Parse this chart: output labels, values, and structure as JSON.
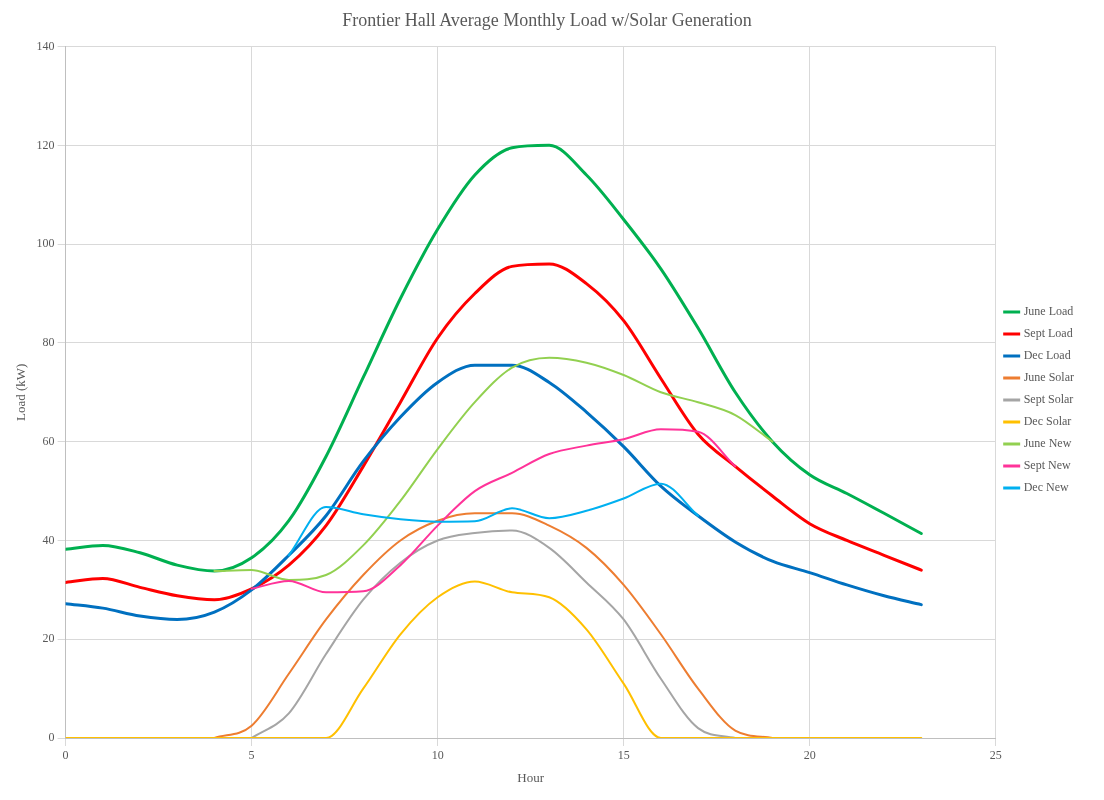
{
  "chart_data": {
    "type": "line",
    "title": "Frontier Hall Average Monthly Load w/Solar Generation",
    "xlabel": "Hour",
    "ylabel": "Load (kW)",
    "x": [
      0,
      1,
      2,
      3,
      4,
      5,
      6,
      7,
      8,
      9,
      10,
      11,
      12,
      13,
      14,
      15,
      16,
      17,
      18,
      19,
      20,
      21,
      22,
      23
    ],
    "xlim": [
      0,
      25
    ],
    "xticks": [
      0,
      5,
      10,
      15,
      20,
      25
    ],
    "ylim": [
      0,
      140
    ],
    "yticks": [
      0,
      20,
      40,
      60,
      80,
      100,
      120,
      140
    ],
    "grid": true,
    "legend": "right",
    "marker": "none",
    "series": [
      {
        "name": "June Load",
        "color": "#00b050",
        "values": [
          38.2,
          39,
          37.5,
          35,
          33.8,
          36.5,
          44,
          57,
          73,
          89,
          103,
          114,
          119.5,
          120,
          114,
          105,
          95,
          83,
          70,
          60,
          53.3,
          49.5,
          45.5,
          41.4
        ]
      },
      {
        "name": "Sept Load",
        "color": "#ff0000",
        "values": [
          31.5,
          32.3,
          30.5,
          28.8,
          28,
          30.2,
          35,
          43,
          55,
          68,
          81,
          90,
          95.5,
          96,
          92,
          84.5,
          72.8,
          61.5,
          55,
          49,
          43.4,
          40,
          37,
          34
        ]
      },
      {
        "name": "Dec Load",
        "color": "#0070c0",
        "values": [
          27.2,
          26.3,
          24.7,
          24,
          25.5,
          30,
          37,
          45,
          56,
          65,
          72,
          75.5,
          75.5,
          72,
          66,
          59,
          51,
          45,
          39.7,
          35.8,
          33.5,
          31,
          28.8,
          27
        ]
      },
      {
        "name": "June Solar",
        "color": "#ed7d31",
        "values": [
          null,
          null,
          null,
          null,
          0,
          2.5,
          13,
          24,
          33,
          40,
          44,
          45.5,
          45.5,
          43,
          38.5,
          31,
          21,
          10,
          1.5,
          0,
          null,
          null,
          null,
          null
        ]
      },
      {
        "name": "Sept Solar",
        "color": "#a5a5a5",
        "values": [
          null,
          null,
          null,
          null,
          null,
          0,
          5,
          17,
          28,
          35.5,
          40,
          41.5,
          42,
          38.5,
          31.5,
          24,
          12,
          2,
          0,
          null,
          null,
          null,
          null,
          null
        ]
      },
      {
        "name": "Dec Solar",
        "color": "#ffc000",
        "values": [
          0,
          0,
          0,
          0,
          0,
          0,
          0,
          0,
          10,
          21,
          28.5,
          31.7,
          29.5,
          28.5,
          22,
          11,
          0,
          0,
          0,
          0,
          0,
          0,
          0,
          0
        ]
      },
      {
        "name": "June New",
        "color": "#92d050",
        "values": [
          null,
          null,
          null,
          null,
          33.8,
          34,
          32,
          33,
          39,
          48,
          58.5,
          68,
          75,
          77,
          76,
          73.5,
          70,
          68,
          65.4,
          60,
          null,
          null,
          null,
          null
        ]
      },
      {
        "name": "Sept New",
        "color": "#ff3399",
        "values": [
          null,
          null,
          null,
          null,
          null,
          30.2,
          31.8,
          29.5,
          29.7,
          35,
          43,
          50,
          53.7,
          57.5,
          59.2,
          60.5,
          62.5,
          62,
          55,
          null,
          null,
          null,
          null,
          null
        ]
      },
      {
        "name": "Dec New",
        "color": "#00b0f0",
        "values": [
          null,
          null,
          null,
          null,
          null,
          null,
          37,
          46.8,
          45.3,
          44.3,
          43.8,
          43.9,
          46.5,
          44.5,
          46,
          48.5,
          51.5,
          45,
          null,
          null,
          null,
          null,
          null,
          null
        ]
      }
    ]
  }
}
